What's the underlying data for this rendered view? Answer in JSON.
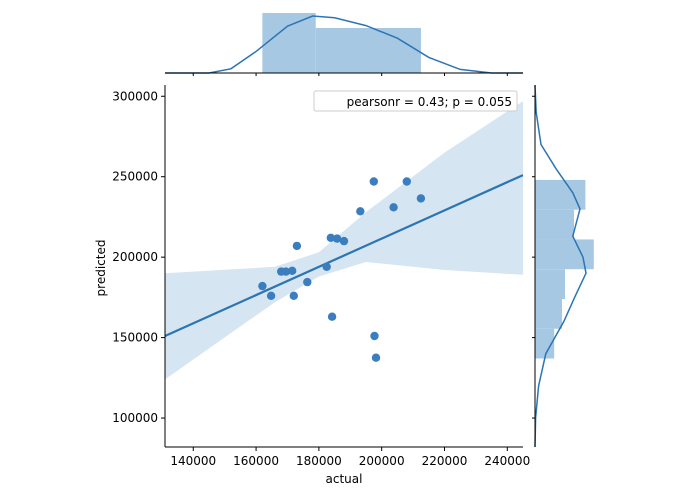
{
  "chart_data": {
    "type": "scatter",
    "xlabel": "actual",
    "ylabel": "predicted",
    "xlim": [
      131000,
      245000
    ],
    "ylim": [
      82000,
      307000
    ],
    "xticks": [
      {
        "value": 140000,
        "label": "140000"
      },
      {
        "value": 160000,
        "label": "160000"
      },
      {
        "value": 180000,
        "label": "180000"
      },
      {
        "value": 200000,
        "label": "200000"
      },
      {
        "value": 220000,
        "label": "220000"
      },
      {
        "value": 240000,
        "label": "240000"
      }
    ],
    "yticks": [
      {
        "value": 100000,
        "label": "100000"
      },
      {
        "value": 150000,
        "label": "150000"
      },
      {
        "value": 200000,
        "label": "200000"
      },
      {
        "value": 250000,
        "label": "250000"
      },
      {
        "value": 300000,
        "label": "300000"
      }
    ],
    "annotation": "pearsonr = 0.43; p = 0.055",
    "legend_position": "top-right",
    "points": [
      {
        "x": 162000,
        "y": 182000
      },
      {
        "x": 164800,
        "y": 176000
      },
      {
        "x": 168000,
        "y": 191000
      },
      {
        "x": 169500,
        "y": 191000
      },
      {
        "x": 171500,
        "y": 191500
      },
      {
        "x": 172000,
        "y": 176000
      },
      {
        "x": 173000,
        "y": 207000
      },
      {
        "x": 176300,
        "y": 184500
      },
      {
        "x": 182500,
        "y": 194000
      },
      {
        "x": 183800,
        "y": 212000
      },
      {
        "x": 184200,
        "y": 163000
      },
      {
        "x": 185800,
        "y": 211500
      },
      {
        "x": 188000,
        "y": 210000
      },
      {
        "x": 193200,
        "y": 228500
      },
      {
        "x": 197500,
        "y": 247000
      },
      {
        "x": 197700,
        "y": 151000
      },
      {
        "x": 198200,
        "y": 137500
      },
      {
        "x": 203800,
        "y": 231000
      },
      {
        "x": 208000,
        "y": 247000
      },
      {
        "x": 212500,
        "y": 236500
      }
    ],
    "regression": {
      "x_range": [
        131000,
        245000
      ],
      "y_at_x_min": 151000,
      "y_at_x_max": 251000,
      "ci_upper_at_x_min": 190000,
      "ci_upper_at_x_max": 297000,
      "ci_lower_at_x_min": 124000,
      "ci_lower_at_x_max": 189000
    },
    "ci_band": {
      "upper": [
        [
          131000,
          190000
        ],
        [
          166000,
          194000
        ],
        [
          180000,
          203000
        ],
        [
          195000,
          228000
        ],
        [
          220000,
          265000
        ],
        [
          245000,
          297000
        ]
      ],
      "lower": [
        [
          131000,
          124000
        ],
        [
          166000,
          172000
        ],
        [
          180000,
          188000
        ],
        [
          195000,
          197000
        ],
        [
          220000,
          192000
        ],
        [
          245000,
          189000
        ]
      ]
    },
    "marginal_x": {
      "histogram": [
        {
          "from": 162000,
          "to": 179000,
          "height": 1.0
        },
        {
          "from": 179000,
          "to": 212500,
          "height": 0.75
        }
      ],
      "kde": [
        [
          131000,
          0
        ],
        [
          145000,
          0.0
        ],
        [
          152000,
          0.07
        ],
        [
          160000,
          0.36
        ],
        [
          170000,
          0.78
        ],
        [
          178000,
          0.95
        ],
        [
          185000,
          0.92
        ],
        [
          195000,
          0.79
        ],
        [
          205000,
          0.58
        ],
        [
          215000,
          0.26
        ],
        [
          225000,
          0.06
        ],
        [
          235000,
          0.0
        ],
        [
          245000,
          0
        ]
      ]
    },
    "marginal_y": {
      "histogram": [
        {
          "from": 137000,
          "to": 155500,
          "height": 0.32
        },
        {
          "from": 155500,
          "to": 174000,
          "height": 0.45
        },
        {
          "from": 174000,
          "to": 192500,
          "height": 0.5
        },
        {
          "from": 192500,
          "to": 211000,
          "height": 0.98
        },
        {
          "from": 211000,
          "to": 229500,
          "height": 0.65
        },
        {
          "from": 229500,
          "to": 248000,
          "height": 0.84
        }
      ],
      "kde": [
        [
          82000,
          0.0
        ],
        [
          100000,
          0.01
        ],
        [
          120000,
          0.06
        ],
        [
          140000,
          0.18
        ],
        [
          160000,
          0.48
        ],
        [
          175000,
          0.66
        ],
        [
          190000,
          0.85
        ],
        [
          200000,
          0.8
        ],
        [
          213000,
          0.63
        ],
        [
          230000,
          0.75
        ],
        [
          240000,
          0.63
        ],
        [
          255000,
          0.35
        ],
        [
          270000,
          0.1
        ],
        [
          290000,
          0.02
        ],
        [
          307000,
          0.0
        ]
      ]
    },
    "colors": {
      "point": "#3a7ebf",
      "line": "#2c75b3",
      "ci": "#c8dcee",
      "hist": "#a6c8e3",
      "kde": "#2c75b3"
    }
  }
}
